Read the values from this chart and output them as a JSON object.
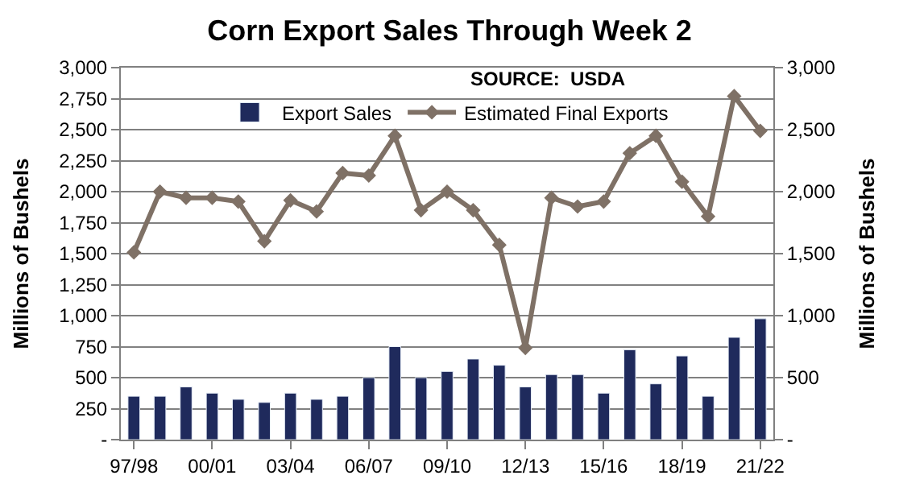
{
  "chart_data": {
    "type": "bar",
    "title": "Corn Export Sales Through Week 2",
    "ylabel": "Millions of Bushels",
    "y2label": "Millions of Bushels",
    "annotations": [
      "SOURCE:  USDA"
    ],
    "categories": [
      "97/98",
      null,
      null,
      "00/01",
      null,
      null,
      "03/04",
      null,
      null,
      "06/07",
      null,
      null,
      "09/10",
      null,
      null,
      "12/13",
      null,
      null,
      "15/16",
      null,
      null,
      "18/19",
      null,
      null,
      "21/22"
    ],
    "series": [
      {
        "name": "Export Sales",
        "color": "#1f2a5c",
        "values": [
          350,
          350,
          425,
          375,
          325,
          300,
          375,
          325,
          350,
          500,
          750,
          500,
          550,
          650,
          600,
          425,
          525,
          525,
          375,
          725,
          450,
          675,
          350,
          825,
          975
        ]
      },
      {
        "name": "Estimated Final Exports",
        "type": "line",
        "axis": "y2",
        "color": "#7f7166",
        "marker": "diamond",
        "values": [
          1510,
          2000,
          1950,
          1950,
          1920,
          1600,
          1930,
          1840,
          2150,
          2130,
          2450,
          1850,
          2000,
          1850,
          1570,
          740,
          1950,
          1880,
          1920,
          2310,
          2450,
          2080,
          1800,
          2770,
          2490
        ]
      }
    ],
    "ylim": [
      0,
      3000
    ],
    "yticks": [
      {
        "value": 0,
        "label": "-"
      },
      {
        "value": 250,
        "label": "250"
      },
      {
        "value": 500,
        "label": "500"
      },
      {
        "value": 750,
        "label": "750"
      },
      {
        "value": 1000,
        "label": "1,000"
      },
      {
        "value": 1250,
        "label": "1,250"
      },
      {
        "value": 1500,
        "label": "1,500"
      },
      {
        "value": 1750,
        "label": "1,750"
      },
      {
        "value": 2000,
        "label": "2,000"
      },
      {
        "value": 2250,
        "label": "2,250"
      },
      {
        "value": 2500,
        "label": "2,500"
      },
      {
        "value": 2750,
        "label": "2,750"
      },
      {
        "value": 3000,
        "label": "3,000"
      }
    ],
    "y2lim": [
      0,
      3000
    ],
    "y2ticks": [
      {
        "value": 0,
        "label": "-"
      },
      {
        "value": 500,
        "label": "500"
      },
      {
        "value": 1000,
        "label": "1,000"
      },
      {
        "value": 1500,
        "label": "1,500"
      },
      {
        "value": 2000,
        "label": "2,000"
      },
      {
        "value": 2500,
        "label": "2,500"
      },
      {
        "value": 3000,
        "label": "3,000"
      }
    ],
    "grid": "y",
    "legend": "top"
  }
}
